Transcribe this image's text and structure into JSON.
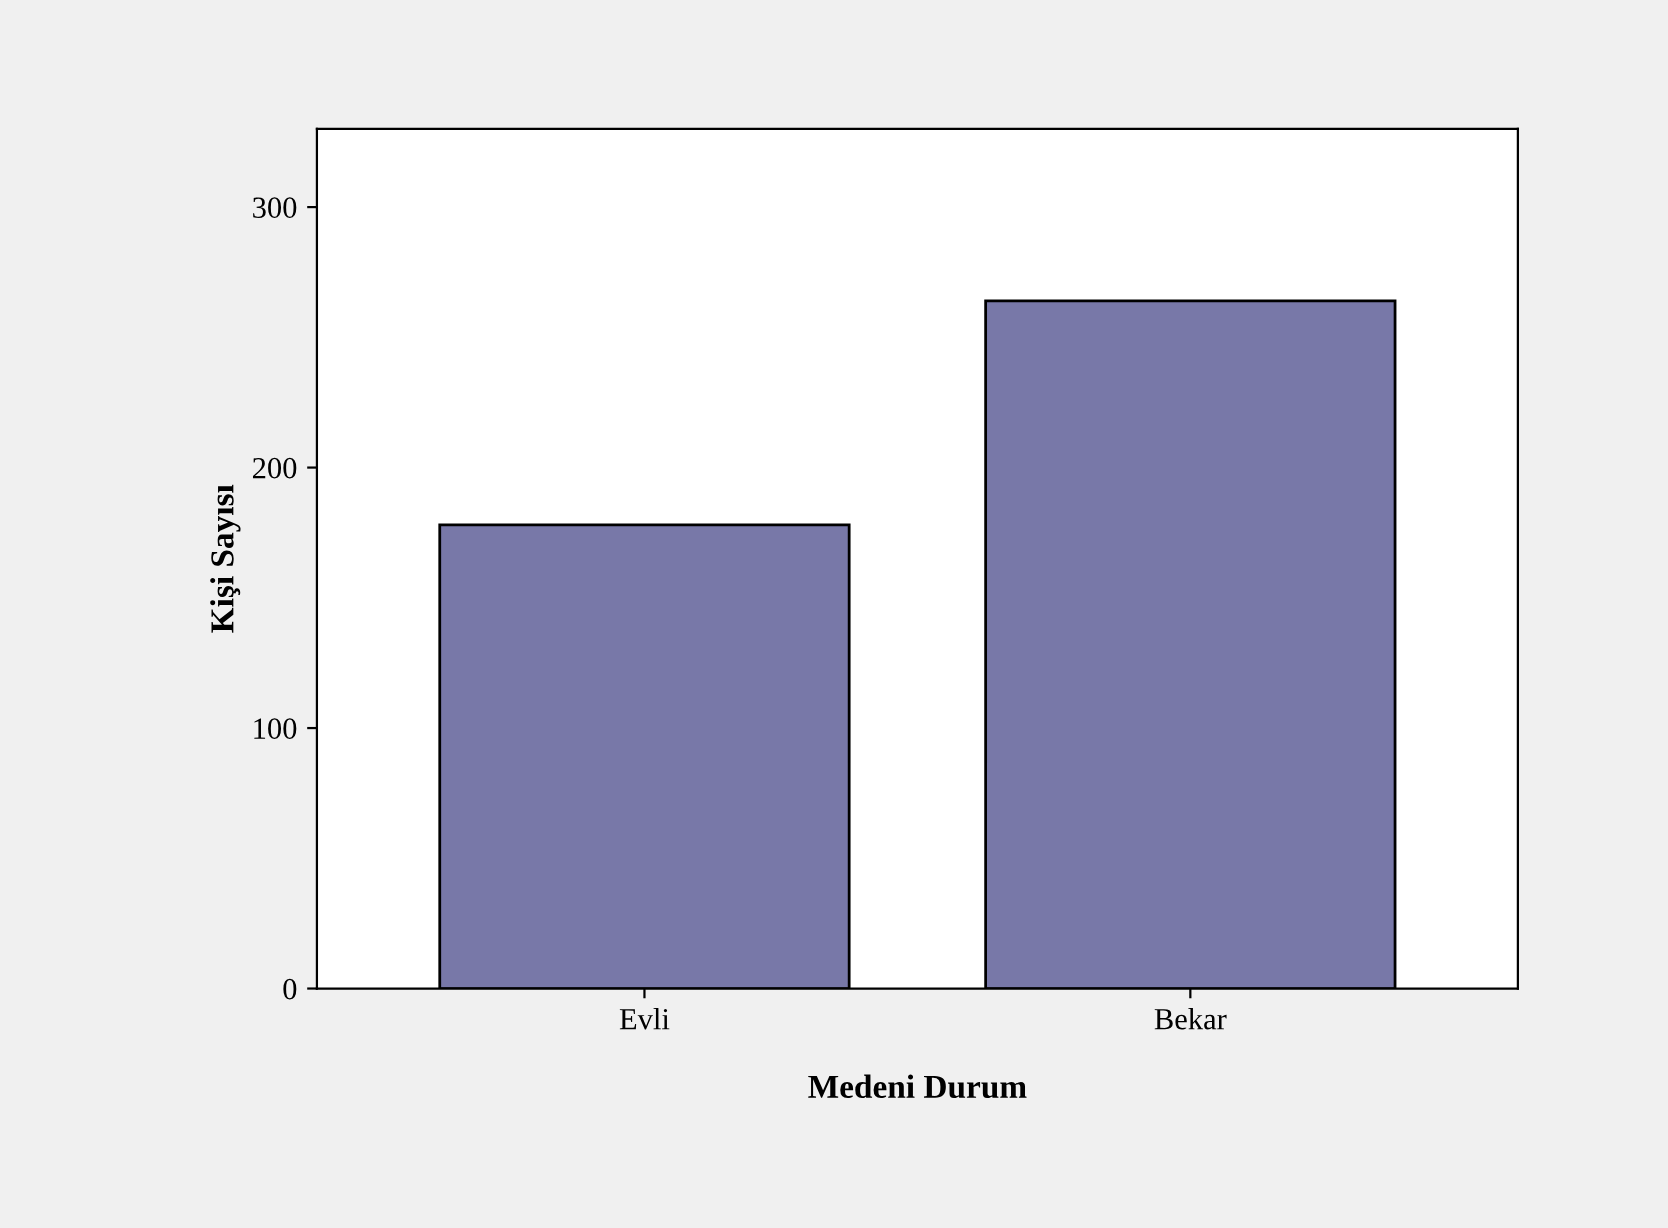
{
  "chart_data": {
    "type": "bar",
    "xlabel": "Medeni Durum",
    "ylabel": "Kişi Sayısı",
    "categories": [
      "Evli",
      "Bekar"
    ],
    "values": [
      178,
      264
    ],
    "color": "#7878a8",
    "ylim": [
      0,
      330
    ],
    "yticks": [
      0,
      100,
      200,
      300
    ],
    "grid": false
  }
}
